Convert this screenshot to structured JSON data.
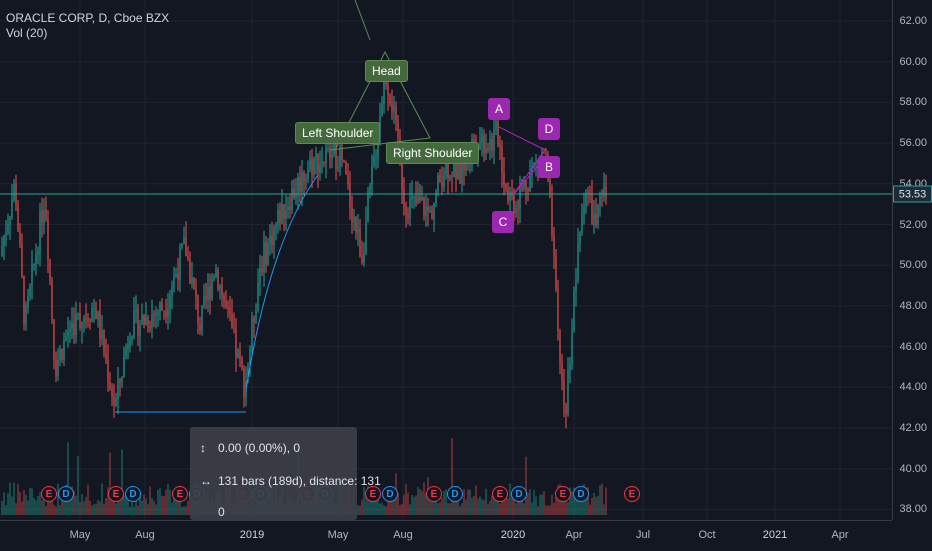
{
  "legend": {
    "symbol_line": "ORACLE CORP, D, Cboe BZX",
    "volume_line": "Vol (20)"
  },
  "price_axis": {
    "ticks": [
      "62.00",
      "60.00",
      "58.00",
      "56.00",
      "54.00",
      "52.00",
      "50.00",
      "48.00",
      "46.00",
      "44.00",
      "42.00",
      "40.00",
      "38.00"
    ],
    "current_price": "53.53"
  },
  "time_axis": {
    "ticks": [
      {
        "label": "May",
        "major": false
      },
      {
        "label": "Aug",
        "major": false
      },
      {
        "label": "2019",
        "major": true
      },
      {
        "label": "May",
        "major": false
      },
      {
        "label": "Aug",
        "major": false
      },
      {
        "label": "2020",
        "major": true
      },
      {
        "label": "Apr",
        "major": false
      },
      {
        "label": "Jul",
        "major": false
      },
      {
        "label": "Oct",
        "major": false
      },
      {
        "label": "2021",
        "major": true
      },
      {
        "label": "Apr",
        "major": false
      }
    ]
  },
  "pattern_labels": {
    "head": "Head",
    "left_shoulder": "Left Shoulder",
    "right_shoulder": "Right Shoulder"
  },
  "abcd_points": {
    "a": "A",
    "b": "B",
    "c": "C",
    "d": "D"
  },
  "event_markers": {
    "earnings": "E",
    "dividend": "D"
  },
  "measure_tooltip": {
    "change": "0.00 (0.00%), 0",
    "bars": "131 bars (189d), distance: 131",
    "vol": "0"
  },
  "colors": {
    "background": "#131722",
    "up": "#26a69a",
    "down": "#ef5350",
    "pattern": "#43693c",
    "abcd": "#9c27b0",
    "price_line": "#26a69a"
  }
}
